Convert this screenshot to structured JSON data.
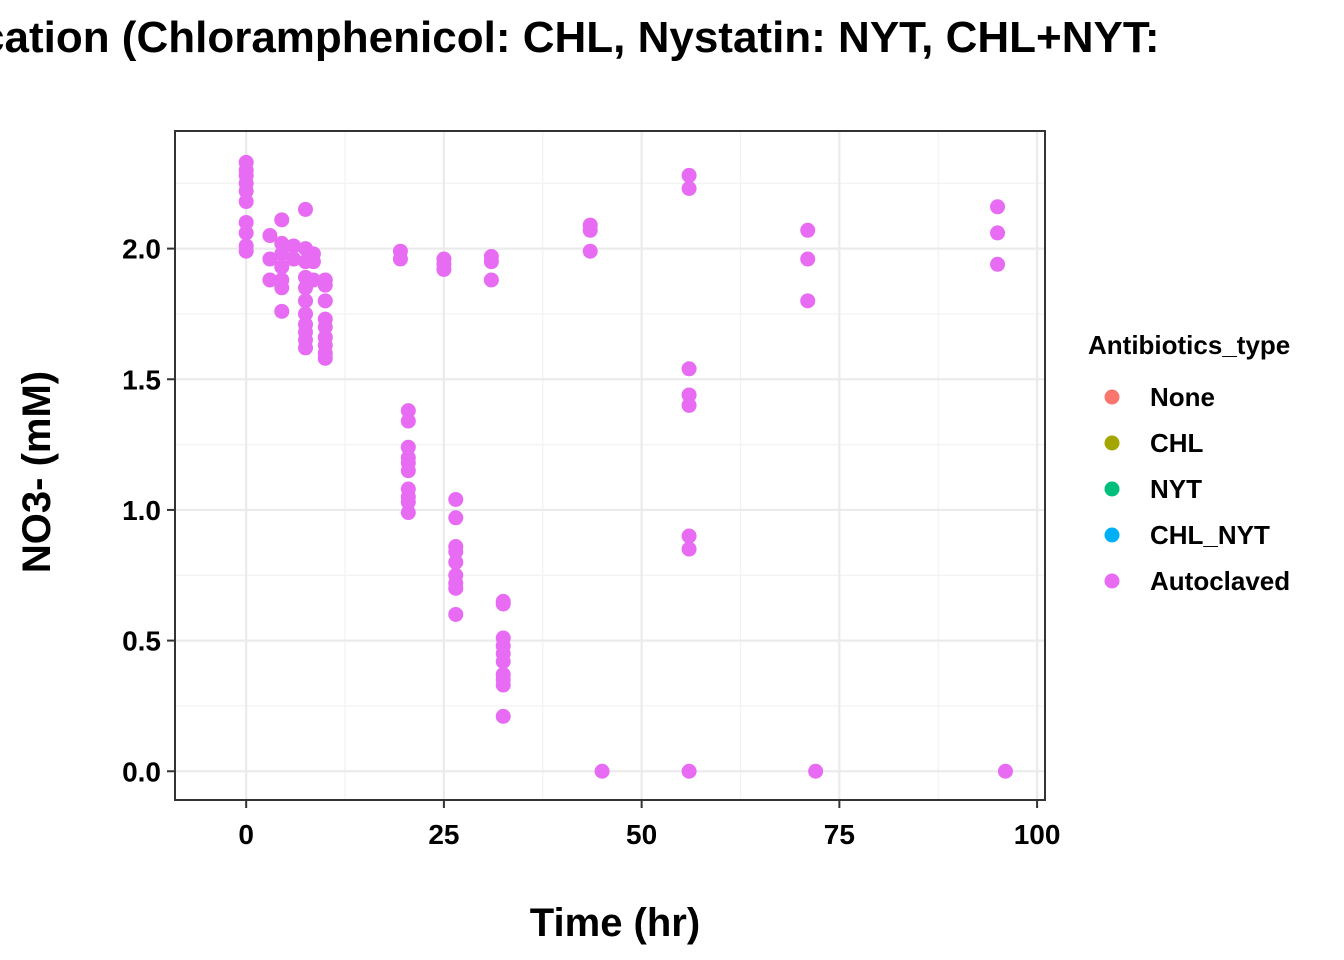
{
  "chart_data": {
    "type": "scatter",
    "title": "cation (Chloramphenicol: CHL, Nystatin: NYT, CHL+NYT:",
    "xlabel": "Time (hr)",
    "ylabel": "NO3- (mM)",
    "xlim": [
      -9,
      101
    ],
    "ylim": [
      -0.11,
      2.45
    ],
    "x_ticks": [
      0,
      25,
      50,
      75,
      100
    ],
    "y_ticks": [
      0.0,
      0.5,
      1.0,
      1.5,
      2.0
    ],
    "y_tick_labels": [
      "0.0",
      "0.5",
      "1.0",
      "1.5",
      "2.0"
    ],
    "grid": true,
    "legend": {
      "title": "Antibiotics_type",
      "position": "right",
      "entries": [
        {
          "name": "None",
          "color": "#F8766D"
        },
        {
          "name": "CHL",
          "color": "#A3A500"
        },
        {
          "name": "NYT",
          "color": "#00BF7D"
        },
        {
          "name": "CHL_NYT",
          "color": "#00B0F6"
        },
        {
          "name": "Autoclaved",
          "color": "#E76BF3"
        }
      ]
    },
    "series": [
      {
        "name": "None",
        "color": "#F8766D",
        "points": []
      },
      {
        "name": "CHL",
        "color": "#A3A500",
        "points": []
      },
      {
        "name": "NYT",
        "color": "#00BF7D",
        "points": []
      },
      {
        "name": "CHL_NYT",
        "color": "#00B0F6",
        "points": []
      },
      {
        "name": "Autoclaved",
        "color": "#E76BF3",
        "points": [
          [
            0,
            2.33
          ],
          [
            0,
            2.3
          ],
          [
            0,
            2.28
          ],
          [
            0,
            2.25
          ],
          [
            0,
            2.22
          ],
          [
            0,
            2.18
          ],
          [
            0,
            2.1
          ],
          [
            0,
            2.06
          ],
          [
            0,
            2.01
          ],
          [
            0,
            1.99
          ],
          [
            3,
            2.05
          ],
          [
            3,
            1.96
          ],
          [
            3,
            1.88
          ],
          [
            4.5,
            2.11
          ],
          [
            4.5,
            2.02
          ],
          [
            4.5,
            1.98
          ],
          [
            4.5,
            1.93
          ],
          [
            4.5,
            1.88
          ],
          [
            4.5,
            1.85
          ],
          [
            4.5,
            1.76
          ],
          [
            6,
            2.01
          ],
          [
            6,
            1.96
          ],
          [
            7.5,
            2.15
          ],
          [
            7.5,
            2.0
          ],
          [
            7.5,
            1.95
          ],
          [
            7.5,
            1.89
          ],
          [
            7.5,
            1.85
          ],
          [
            7.5,
            1.8
          ],
          [
            7.5,
            1.75
          ],
          [
            7.5,
            1.71
          ],
          [
            7.5,
            1.68
          ],
          [
            7.5,
            1.65
          ],
          [
            7.5,
            1.62
          ],
          [
            8.5,
            1.98
          ],
          [
            8.5,
            1.95
          ],
          [
            8.5,
            1.88
          ],
          [
            10,
            1.88
          ],
          [
            10,
            1.86
          ],
          [
            10,
            1.8
          ],
          [
            10,
            1.73
          ],
          [
            10,
            1.7
          ],
          [
            10,
            1.66
          ],
          [
            10,
            1.63
          ],
          [
            10,
            1.6
          ],
          [
            10,
            1.58
          ],
          [
            19.5,
            1.99
          ],
          [
            19.5,
            1.96
          ],
          [
            20.5,
            1.38
          ],
          [
            20.5,
            1.34
          ],
          [
            20.5,
            1.24
          ],
          [
            20.5,
            1.2
          ],
          [
            20.5,
            1.18
          ],
          [
            20.5,
            1.15
          ],
          [
            20.5,
            1.08
          ],
          [
            20.5,
            1.05
          ],
          [
            20.5,
            1.03
          ],
          [
            20.5,
            0.99
          ],
          [
            25,
            1.96
          ],
          [
            25,
            1.94
          ],
          [
            25,
            1.92
          ],
          [
            26.5,
            1.04
          ],
          [
            26.5,
            0.97
          ],
          [
            26.5,
            0.86
          ],
          [
            26.5,
            0.84
          ],
          [
            26.5,
            0.8
          ],
          [
            26.5,
            0.75
          ],
          [
            26.5,
            0.72
          ],
          [
            26.5,
            0.7
          ],
          [
            26.5,
            0.6
          ],
          [
            31,
            1.97
          ],
          [
            31,
            1.95
          ],
          [
            31,
            1.88
          ],
          [
            32.5,
            0.65
          ],
          [
            32.5,
            0.64
          ],
          [
            32.5,
            0.51
          ],
          [
            32.5,
            0.48
          ],
          [
            32.5,
            0.45
          ],
          [
            32.5,
            0.42
          ],
          [
            32.5,
            0.37
          ],
          [
            32.5,
            0.35
          ],
          [
            32.5,
            0.33
          ],
          [
            32.5,
            0.21
          ],
          [
            43.5,
            2.09
          ],
          [
            43.5,
            2.07
          ],
          [
            43.5,
            1.99
          ],
          [
            45,
            0.0
          ],
          [
            56,
            2.28
          ],
          [
            56,
            2.23
          ],
          [
            56,
            1.54
          ],
          [
            56,
            1.44
          ],
          [
            56,
            1.4
          ],
          [
            56,
            0.9
          ],
          [
            56,
            0.85
          ],
          [
            56,
            0.0
          ],
          [
            71,
            2.07
          ],
          [
            71,
            1.96
          ],
          [
            71,
            1.8
          ],
          [
            72,
            0.0
          ],
          [
            95,
            2.16
          ],
          [
            95,
            2.06
          ],
          [
            95,
            1.94
          ],
          [
            96,
            0.0
          ]
        ]
      }
    ]
  }
}
